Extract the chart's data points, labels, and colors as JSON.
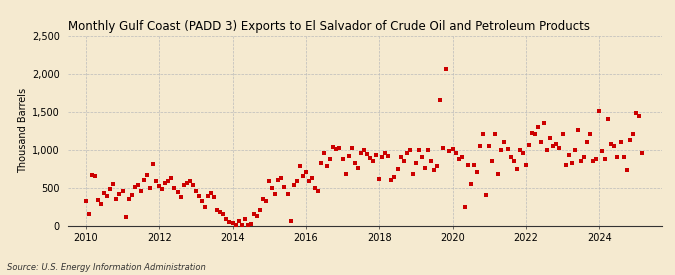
{
  "title": "Monthly Gulf Coast (PADD 3) Exports to El Salvador of Crude Oil and Petroleum Products",
  "ylabel": "Thousand Barrels",
  "source": "Source: U.S. Energy Information Administration",
  "background_color": "#f5ead0",
  "plot_bg_color": "#fdf6e3",
  "dot_color": "#cc0000",
  "ylim": [
    0,
    2500
  ],
  "yticks": [
    0,
    500,
    1000,
    1500,
    2000,
    2500
  ],
  "ytick_labels": [
    "0",
    "500",
    "1,000",
    "1,500",
    "2,000",
    "2,500"
  ],
  "xtick_years": [
    2010,
    2012,
    2014,
    2016,
    2018,
    2020,
    2022,
    2024
  ],
  "xlim": [
    2009.5,
    2025.7
  ],
  "dates_numeric": [
    2010.0,
    2010.083,
    2010.167,
    2010.25,
    2010.333,
    2010.417,
    2010.5,
    2010.583,
    2010.667,
    2010.75,
    2010.833,
    2010.917,
    2011.0,
    2011.083,
    2011.167,
    2011.25,
    2011.333,
    2011.417,
    2011.5,
    2011.583,
    2011.667,
    2011.75,
    2011.833,
    2011.917,
    2012.0,
    2012.083,
    2012.167,
    2012.25,
    2012.333,
    2012.417,
    2012.5,
    2012.583,
    2012.667,
    2012.75,
    2012.833,
    2012.917,
    2013.0,
    2013.083,
    2013.167,
    2013.25,
    2013.333,
    2013.417,
    2013.5,
    2013.583,
    2013.667,
    2013.75,
    2013.833,
    2013.917,
    2014.0,
    2014.083,
    2014.167,
    2014.25,
    2014.333,
    2014.417,
    2014.5,
    2014.583,
    2014.667,
    2014.75,
    2014.833,
    2014.917,
    2015.0,
    2015.083,
    2015.167,
    2015.25,
    2015.333,
    2015.417,
    2015.5,
    2015.583,
    2015.667,
    2015.75,
    2015.833,
    2015.917,
    2016.0,
    2016.083,
    2016.167,
    2016.25,
    2016.333,
    2016.417,
    2016.5,
    2016.583,
    2016.667,
    2016.75,
    2016.833,
    2016.917,
    2017.0,
    2017.083,
    2017.167,
    2017.25,
    2017.333,
    2017.417,
    2017.5,
    2017.583,
    2017.667,
    2017.75,
    2017.833,
    2017.917,
    2018.0,
    2018.083,
    2018.167,
    2018.25,
    2018.333,
    2018.417,
    2018.5,
    2018.583,
    2018.667,
    2018.75,
    2018.833,
    2018.917,
    2019.0,
    2019.083,
    2019.167,
    2019.25,
    2019.333,
    2019.417,
    2019.5,
    2019.583,
    2019.667,
    2019.75,
    2019.833,
    2019.917,
    2020.0,
    2020.083,
    2020.167,
    2020.25,
    2020.333,
    2020.417,
    2020.5,
    2020.583,
    2020.667,
    2020.75,
    2020.833,
    2020.917,
    2021.0,
    2021.083,
    2021.167,
    2021.25,
    2021.333,
    2021.417,
    2021.5,
    2021.583,
    2021.667,
    2021.75,
    2021.833,
    2021.917,
    2022.0,
    2022.083,
    2022.167,
    2022.25,
    2022.333,
    2022.417,
    2022.5,
    2022.583,
    2022.667,
    2022.75,
    2022.833,
    2022.917,
    2023.0,
    2023.083,
    2023.167,
    2023.25,
    2023.333,
    2023.417,
    2023.5,
    2023.583,
    2023.667,
    2023.75,
    2023.833,
    2023.917,
    2024.0,
    2024.083,
    2024.167,
    2024.25,
    2024.333,
    2024.417,
    2024.5,
    2024.583,
    2024.667,
    2024.75,
    2024.833,
    2024.917,
    2025.0,
    2025.083,
    2025.167
  ],
  "values": [
    320,
    150,
    670,
    650,
    340,
    280,
    430,
    390,
    480,
    550,
    350,
    420,
    460,
    110,
    350,
    400,
    510,
    530,
    450,
    600,
    660,
    490,
    810,
    590,
    520,
    480,
    560,
    580,
    620,
    500,
    440,
    370,
    540,
    560,
    580,
    530,
    450,
    390,
    320,
    240,
    390,
    430,
    380,
    200,
    180,
    150,
    90,
    50,
    30,
    10,
    60,
    5,
    80,
    10,
    20,
    150,
    120,
    200,
    350,
    320,
    580,
    500,
    420,
    600,
    620,
    510,
    420,
    60,
    540,
    580,
    790,
    650,
    700,
    580,
    630,
    500,
    460,
    830,
    950,
    780,
    870,
    1040,
    1010,
    1020,
    870,
    680,
    910,
    1020,
    830,
    760,
    950,
    1000,
    940,
    890,
    850,
    930,
    610,
    900,
    960,
    910,
    600,
    640,
    750,
    900,
    850,
    950,
    1000,
    680,
    830,
    1000,
    900,
    760,
    1000,
    850,
    730,
    780,
    1650,
    1020,
    2060,
    980,
    1010,
    950,
    870,
    900,
    250,
    800,
    550,
    800,
    700,
    1050,
    1200,
    400,
    1050,
    850,
    1200,
    680,
    1000,
    1100,
    1010,
    900,
    850,
    750,
    1000,
    950,
    800,
    1060,
    1220,
    1200,
    1300,
    1100,
    1350,
    1000,
    1150,
    1050,
    1080,
    1020,
    1200,
    800,
    930,
    820,
    1000,
    1260,
    850,
    900,
    1100,
    1200,
    850,
    880,
    1510,
    980,
    870,
    1400,
    1070,
    1050,
    900,
    1100,
    900,
    730,
    1130,
    1200,
    1480,
    1440,
    950
  ]
}
